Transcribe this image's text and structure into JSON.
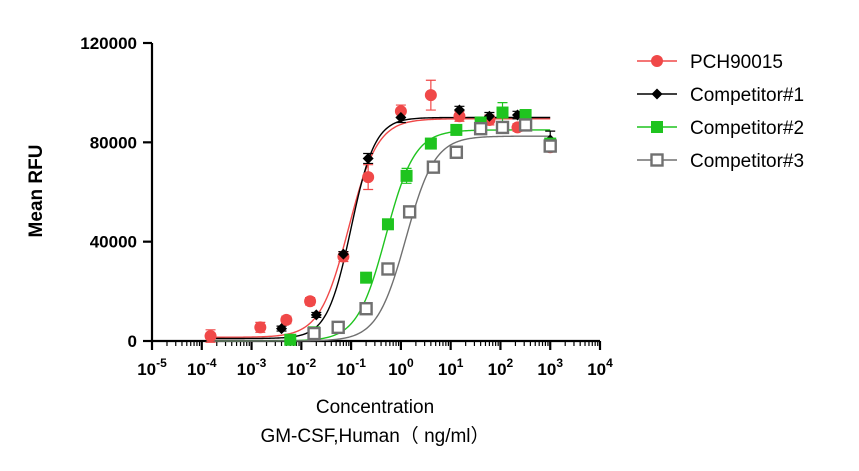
{
  "chart_data": {
    "type": "scatter",
    "title": "",
    "xlabel_line1": "Concentration",
    "xlabel_line2": "GM-CSF,Human（ ng/ml）",
    "ylabel": "Mean RFU",
    "xscale": "log10",
    "x_exponents": [
      -5,
      -4,
      -3,
      -2,
      -1,
      0,
      1,
      2,
      3,
      4
    ],
    "x_tick_base": "10",
    "ylim": [
      0,
      120000
    ],
    "yticks": [
      0,
      40000,
      80000,
      120000
    ],
    "ytick_labels": [
      "0",
      "40000",
      "80000",
      "120000"
    ],
    "legend_position": "top-right",
    "series": [
      {
        "name": "PCH90015",
        "marker": "circle",
        "color": "#f04848",
        "fit": {
          "bottom": 1500,
          "top": 89500,
          "log_ec50": -1.05,
          "hill": 1.5
        },
        "points": [
          {
            "x": 0.00015,
            "y": 2000,
            "err": 2500
          },
          {
            "x": 0.0015,
            "y": 5500,
            "err": 2000
          },
          {
            "x": 0.005,
            "y": 8500,
            "err": 1500
          },
          {
            "x": 0.015,
            "y": 16000,
            "err": 1500
          },
          {
            "x": 0.07,
            "y": 34000,
            "err": 2000
          },
          {
            "x": 0.22,
            "y": 66000,
            "err": 5000
          },
          {
            "x": 1.0,
            "y": 92500,
            "err": 2500
          },
          {
            "x": 4.0,
            "y": 99000,
            "err": 6000
          },
          {
            "x": 15,
            "y": 90500,
            "err": 2000
          },
          {
            "x": 60,
            "y": 89000,
            "err": 2000
          },
          {
            "x": 220,
            "y": 86000,
            "err": 1500
          },
          {
            "x": 1000,
            "y": 78000,
            "err": 1500
          }
        ]
      },
      {
        "name": "Competitor#1",
        "marker": "diamond",
        "color": "#000000",
        "fit": {
          "bottom": 1000,
          "top": 90000,
          "log_ec50": -1.0,
          "hill": 1.8
        },
        "points": [
          {
            "x": 0.004,
            "y": 5000,
            "err": 1000
          },
          {
            "x": 0.02,
            "y": 10500,
            "err": 1000
          },
          {
            "x": 0.07,
            "y": 35000,
            "err": 1000
          },
          {
            "x": 0.22,
            "y": 73500,
            "err": 2000
          },
          {
            "x": 1.0,
            "y": 90000,
            "err": 2000
          },
          {
            "x": 15,
            "y": 93000,
            "err": 1500
          },
          {
            "x": 60,
            "y": 90500,
            "err": 1500
          },
          {
            "x": 220,
            "y": 91000,
            "err": 1500
          },
          {
            "x": 1000,
            "y": 81000,
            "err": 3500
          }
        ]
      },
      {
        "name": "Competitor#2",
        "marker": "square",
        "color": "#1fc41f",
        "fit": {
          "bottom": 0,
          "top": 85000,
          "log_ec50": -0.3,
          "hill": 1.5
        },
        "points": [
          {
            "x": 0.006,
            "y": 500,
            "err": 1000
          },
          {
            "x": 0.018,
            "y": 3500,
            "err": 1000
          },
          {
            "x": 0.2,
            "y": 25500,
            "err": 1500
          },
          {
            "x": 0.55,
            "y": 47000,
            "err": 1500
          },
          {
            "x": 1.3,
            "y": 66500,
            "err": 3000
          },
          {
            "x": 4.0,
            "y": 79500,
            "err": 2000
          },
          {
            "x": 13,
            "y": 85000,
            "err": 2000
          },
          {
            "x": 40,
            "y": 88000,
            "err": 2000
          },
          {
            "x": 110,
            "y": 92000,
            "err": 4000
          },
          {
            "x": 320,
            "y": 91000,
            "err": 2000
          },
          {
            "x": 1000,
            "y": 79500,
            "err": 1500
          }
        ]
      },
      {
        "name": "Competitor#3",
        "marker": "open-square",
        "color": "#707070",
        "fit": {
          "bottom": 0,
          "top": 82500,
          "log_ec50": 0.1,
          "hill": 1.5
        },
        "points": [
          {
            "x": 0.018,
            "y": 3000,
            "err": 1000
          },
          {
            "x": 0.055,
            "y": 5500,
            "err": 1000
          },
          {
            "x": 0.2,
            "y": 13000,
            "err": 1000
          },
          {
            "x": 0.55,
            "y": 29000,
            "err": 1000
          },
          {
            "x": 1.5,
            "y": 52000,
            "err": 1500
          },
          {
            "x": 4.5,
            "y": 70000,
            "err": 2000
          },
          {
            "x": 13,
            "y": 76000,
            "err": 1500
          },
          {
            "x": 40,
            "y": 85500,
            "err": 1500
          },
          {
            "x": 110,
            "y": 86000,
            "err": 1500
          },
          {
            "x": 320,
            "y": 87000,
            "err": 1500
          },
          {
            "x": 1000,
            "y": 78500,
            "err": 1500
          }
        ]
      }
    ]
  }
}
